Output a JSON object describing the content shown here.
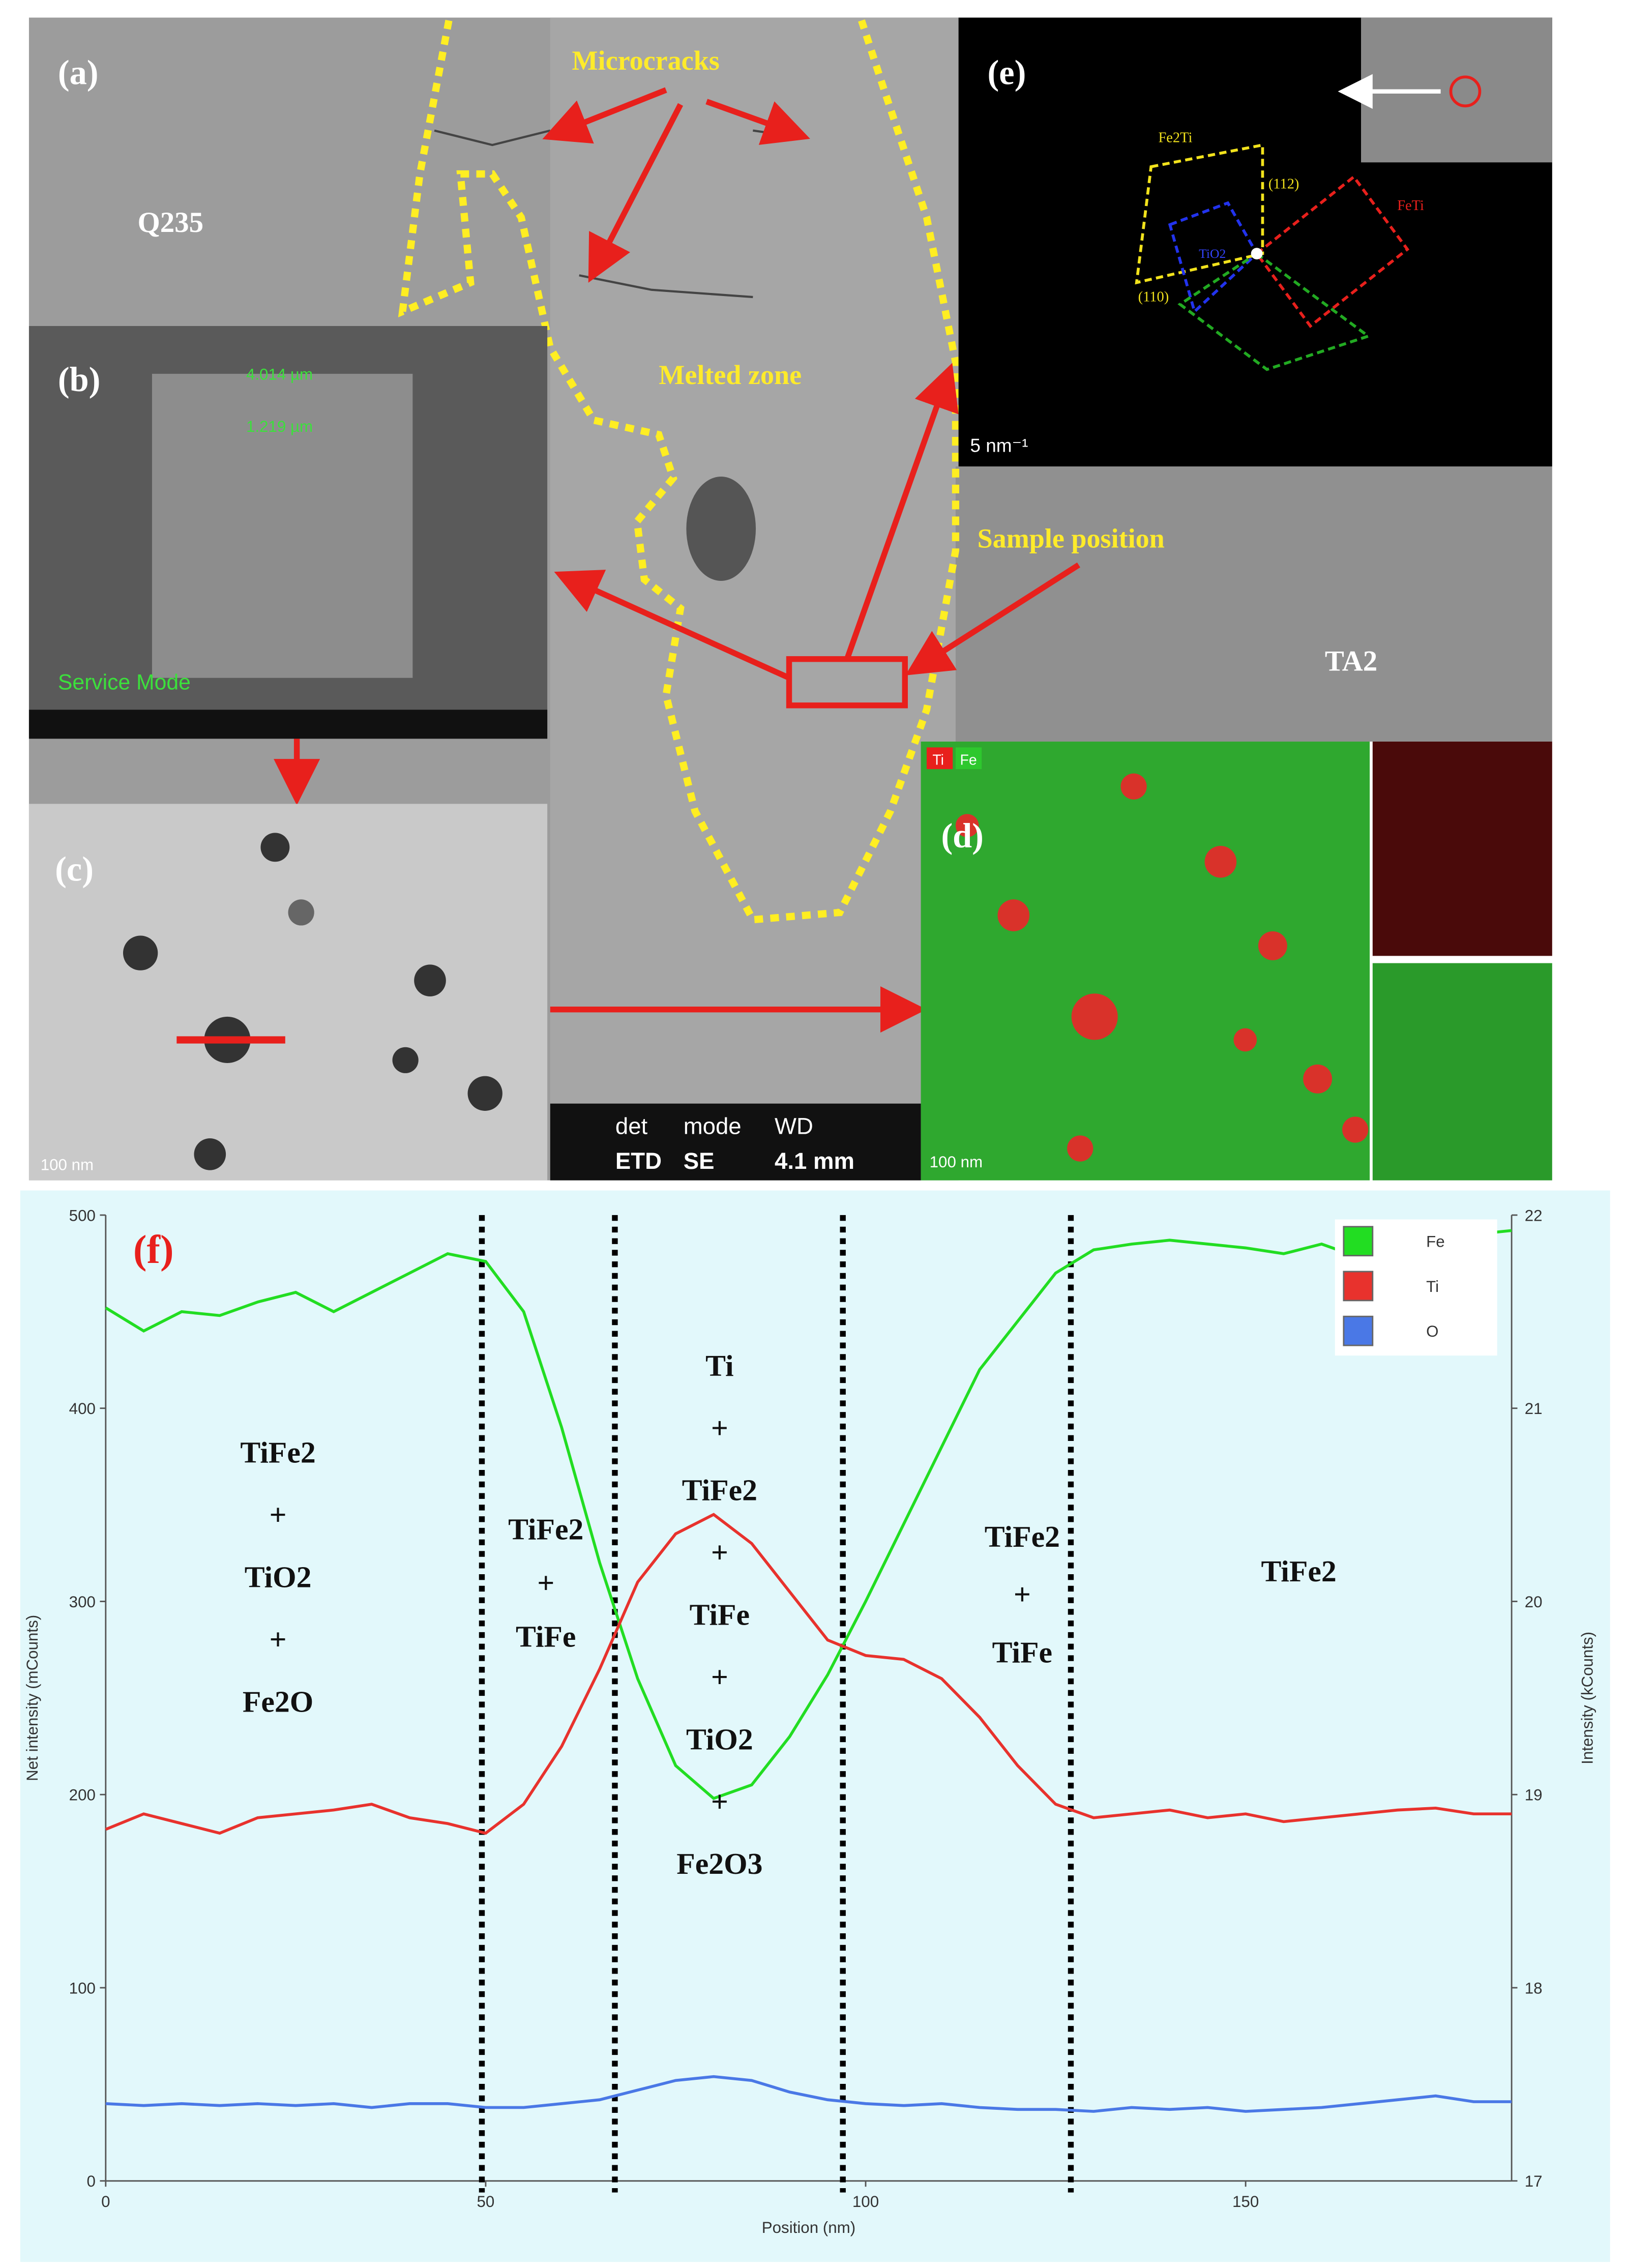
{
  "panels": {
    "a": {
      "label": "(a)",
      "microcracks": "Microcracks",
      "q235": "Q235",
      "melted_zone": "Melted zone",
      "sample_position": "Sample position",
      "ta2": "TA2"
    },
    "b": {
      "label": "(b)",
      "width": "4.014 µm",
      "depth": "1.219 µm",
      "mode": "Service Mode"
    },
    "c": {
      "label": "(c)",
      "scale": "100 nm"
    },
    "d": {
      "label": "(d)",
      "ti": "Ti",
      "fe": "Fe",
      "scale": "100 nm"
    },
    "e": {
      "label": "(e)",
      "fe2ti": "Fe2Ti",
      "feti": "FeTi",
      "tio2": "TiO2",
      "plane1": "(110)",
      "plane2": "(112)",
      "scale": "5 nm⁻¹"
    },
    "sem_bar": {
      "headers": [
        "det",
        "mode",
        "WD"
      ],
      "values": [
        "ETD",
        "SE",
        "4.1 mm"
      ]
    }
  },
  "chart_data": {
    "type": "line",
    "label": "(f)",
    "xlabel": "Position (nm)",
    "ylabel": "Net intensity (mCounts)",
    "y2label": "Intensity (kCounts)",
    "xlim": [
      0,
      185
    ],
    "xticks": [
      0,
      50,
      100,
      150
    ],
    "ylim": [
      0,
      500
    ],
    "yticks": [
      0,
      100,
      200,
      300,
      400,
      500
    ],
    "y2lim": [
      17,
      22
    ],
    "y2ticks": [
      17,
      18,
      19,
      20,
      21,
      22
    ],
    "x": [
      0,
      5,
      10,
      15,
      20,
      25,
      30,
      35,
      40,
      45,
      50,
      55,
      60,
      65,
      70,
      75,
      80,
      85,
      90,
      95,
      100,
      105,
      110,
      115,
      120,
      125,
      130,
      135,
      140,
      145,
      150,
      155,
      160,
      165,
      170,
      175,
      180,
      185
    ],
    "series": [
      {
        "name": "Fe",
        "color": "#22dd22",
        "axis": "y2",
        "values": [
          21.52,
          21.4,
          21.5,
          21.48,
          21.55,
          21.6,
          21.5,
          21.6,
          21.7,
          21.8,
          21.76,
          21.5,
          20.9,
          20.2,
          19.6,
          19.15,
          18.98,
          19.05,
          19.3,
          19.62,
          20.0,
          20.4,
          20.8,
          21.2,
          21.45,
          21.7,
          21.82,
          21.85,
          21.87,
          21.85,
          21.83,
          21.8,
          21.85,
          21.78,
          21.8,
          21.85,
          21.9,
          21.92
        ]
      },
      {
        "name": "Ti",
        "color": "#e8322d",
        "values": [
          182,
          190,
          185,
          180,
          188,
          190,
          192,
          195,
          188,
          185,
          180,
          195,
          225,
          265,
          310,
          335,
          345,
          330,
          305,
          280,
          272,
          270,
          260,
          240,
          215,
          195,
          188,
          190,
          192,
          188,
          190,
          186,
          188,
          190,
          192,
          193,
          190,
          190
        ]
      },
      {
        "name": "O",
        "color": "#4a78e6",
        "values": [
          40,
          39,
          40,
          39,
          40,
          39,
          40,
          38,
          40,
          40,
          38,
          38,
          40,
          42,
          47,
          52,
          54,
          52,
          46,
          42,
          40,
          39,
          40,
          38,
          37,
          37,
          36,
          38,
          37,
          38,
          36,
          37,
          38,
          40,
          42,
          44,
          41,
          41
        ]
      }
    ],
    "phase_boundaries": [
      49.5,
      67,
      97,
      127
    ],
    "phase_labels": [
      [
        "TiFe2",
        "+",
        "TiO2",
        "+",
        "Fe2O"
      ],
      [
        "TiFe2",
        "+",
        "TiFe"
      ],
      [
        "Ti",
        "+",
        "TiFe2",
        "+",
        "TiFe",
        "+",
        "TiO2",
        "+",
        "Fe2O3"
      ],
      [
        "TiFe2",
        "+",
        "TiFe"
      ],
      [
        "TiFe2"
      ]
    ]
  }
}
